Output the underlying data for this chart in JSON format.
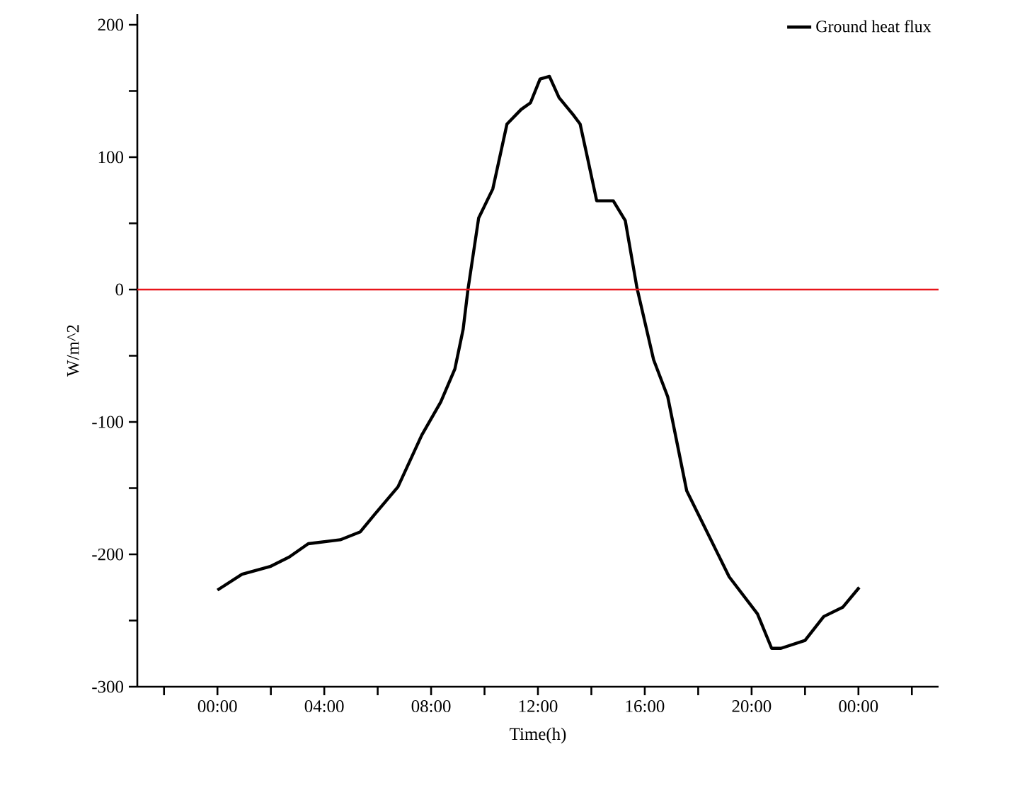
{
  "chart_data": {
    "type": "line",
    "xlabel": "Time(h)",
    "ylabel": "W/m^2",
    "xlim": [
      -3,
      27
    ],
    "ylim": [
      -300,
      208
    ],
    "xticks": [
      {
        "value": -2,
        "label": null
      },
      {
        "value": 0,
        "label": "00:00"
      },
      {
        "value": 2,
        "label": null
      },
      {
        "value": 4,
        "label": "04:00"
      },
      {
        "value": 6,
        "label": null
      },
      {
        "value": 8,
        "label": "08:00"
      },
      {
        "value": 10,
        "label": null
      },
      {
        "value": 12,
        "label": "12:00"
      },
      {
        "value": 14,
        "label": null
      },
      {
        "value": 16,
        "label": "16:00"
      },
      {
        "value": 18,
        "label": null
      },
      {
        "value": 20,
        "label": "20:00"
      },
      {
        "value": 22,
        "label": null
      },
      {
        "value": 24,
        "label": "00:00"
      },
      {
        "value": 26,
        "label": null
      }
    ],
    "yticks": [
      -300,
      {
        "value": -250,
        "label": null
      },
      -200,
      {
        "value": -150,
        "label": null
      },
      -100,
      {
        "value": -50,
        "label": null
      },
      0,
      {
        "value": 50,
        "label": null
      },
      100,
      {
        "value": 150,
        "label": null
      },
      200
    ],
    "series": [
      {
        "name": "Ground heat flux",
        "color": "#000000",
        "x": [
          0,
          0.92,
          2.0,
          2.69,
          3.4,
          4.6,
          5.35,
          5.88,
          6.76,
          7.65,
          8.36,
          8.89,
          9.2,
          9.38,
          9.78,
          10.31,
          10.84,
          11.37,
          11.72,
          12.08,
          12.43,
          12.79,
          13.32,
          13.58,
          13.85,
          14.2,
          14.82,
          15.27,
          15.71,
          16.33,
          16.86,
          17.57,
          18.28,
          19.16,
          20.22,
          20.75,
          21.1,
          22.0,
          22.7,
          23.41,
          24.03
        ],
        "values": [
          -227,
          -215,
          -209,
          -202,
          -192,
          -189,
          -183,
          -170,
          -149,
          -110,
          -85,
          -60,
          -30,
          0,
          54,
          76,
          125,
          136,
          141,
          159,
          161,
          145,
          132,
          125,
          100,
          67,
          67,
          52,
          1,
          -53,
          -81,
          -152,
          -181,
          -217,
          -245,
          -271,
          -271,
          -265,
          -247,
          -240,
          -225
        ]
      }
    ],
    "ref_lines": [
      {
        "axis": "y",
        "value": 0,
        "color": "#e8141a"
      }
    ],
    "legend": "top right",
    "grid": false,
    "marker": "none",
    "line_style": "solid"
  }
}
